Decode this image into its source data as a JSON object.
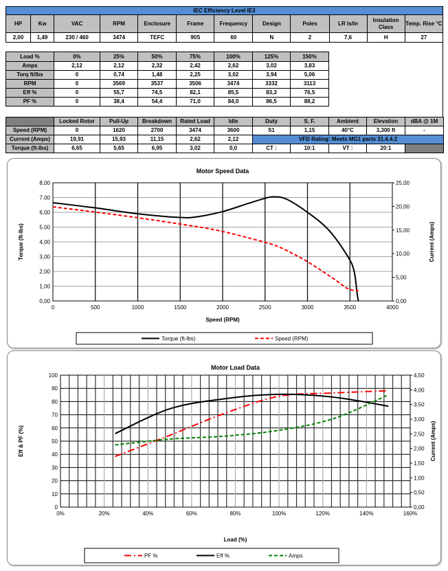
{
  "specs": {
    "title": "IEC Efficiency Level IE3",
    "headers": [
      "HP",
      "Kw",
      "VAC",
      "RPM",
      "Enclosure",
      "Frame",
      "Frequency",
      "Design",
      "Poles",
      "LR Is/In",
      "Insulation Class",
      "Temp. Rise °C"
    ],
    "values": [
      "2,00",
      "1,49",
      "230 / 460",
      "3474",
      "TEFC",
      "90S",
      "60",
      "N",
      "2",
      "7,6",
      "H",
      "27"
    ]
  },
  "load_table": {
    "headers": [
      "Load %",
      "0%",
      "25%",
      "50%",
      "75%",
      "100%",
      "125%",
      "150%"
    ],
    "rows": [
      [
        "Amps",
        "2,12",
        "2,12",
        "2,32",
        "2,42",
        "2,62",
        "3,02",
        "3,83"
      ],
      [
        "Torq ft/lbs",
        "0",
        "0,74",
        "1,48",
        "2,25",
        "3,02",
        "3,94",
        "5,06"
      ],
      [
        "RPM",
        "0",
        "3569",
        "3537",
        "3506",
        "3474",
        "3332",
        "3113"
      ],
      [
        "Eff %",
        "0",
        "55,7",
        "74,5",
        "82,1",
        "85,5",
        "83,3",
        "76,5"
      ],
      [
        "PF %",
        "0",
        "38,4",
        "54,4",
        "71,0",
        "84,0",
        "86,5",
        "88,2"
      ]
    ]
  },
  "perf_table": {
    "headers": [
      "",
      "Locked Rotor",
      "Pull-Up",
      "Breakdown",
      "Rated Load",
      "Idle",
      "Duty",
      "S. F.",
      "Ambient",
      "Elevation",
      "dBA @ 1M"
    ],
    "speed": [
      "Speed (RPM)",
      "0",
      "1620",
      "2700",
      "3474",
      "3600",
      "S1",
      "1,15",
      "40°C",
      "3,300 ft",
      "-"
    ],
    "current": [
      "Current (Amps)",
      "19,91",
      "15,93",
      "11,15",
      "2,62",
      "2,12"
    ],
    "vfd": "VFD Rating: Meets MG1 parts 31.4.4.2",
    "torque": [
      "Torque (ft-lbs)",
      "6,65",
      "5,65",
      "6,95",
      "3,02",
      "0,0",
      "CT :",
      "10:1",
      "VT :",
      "20:1"
    ]
  },
  "chart_data": [
    {
      "type": "line",
      "title": "Motor Speed Data",
      "xlabel": "Speed (RPM)",
      "ylabel": "Torque (ft-lbs)",
      "y2label": "Current (Amps)",
      "xlim": [
        0,
        4000
      ],
      "ylim": [
        0,
        8
      ],
      "y2lim": [
        0,
        25
      ],
      "xticks": [
        "0",
        "500",
        "1000",
        "1500",
        "2000",
        "2500",
        "3000",
        "3500",
        "4000"
      ],
      "yticks": [
        "0,00",
        "1,00",
        "2,00",
        "3,00",
        "4,00",
        "5,00",
        "6,00",
        "7,00",
        "8,00"
      ],
      "y2ticks": [
        "0,00",
        "5,00",
        "10,00",
        "15,00",
        "20,00",
        "25,00"
      ],
      "legend_position": "bottom",
      "series": [
        {
          "name": "Torque (ft-lbs)",
          "axis": "left",
          "color": "#000000",
          "dash": "solid",
          "x": [
            0,
            500,
            1000,
            1500,
            1700,
            2000,
            2300,
            2500,
            2600,
            2750,
            3000,
            3250,
            3474,
            3550,
            3585,
            3600
          ],
          "y": [
            6.65,
            6.3,
            5.9,
            5.65,
            5.7,
            6.05,
            6.6,
            6.95,
            7.05,
            6.9,
            6.0,
            4.8,
            3.02,
            2.0,
            0.5,
            0
          ]
        },
        {
          "name": "Speed (RPM)",
          "axis": "right",
          "color": "#ff0000",
          "dash": "dashed",
          "x": [
            0,
            500,
            1000,
            1620,
            2000,
            2500,
            2700,
            3000,
            3300,
            3474,
            3600
          ],
          "y": [
            19.91,
            18.8,
            17.6,
            15.93,
            14.7,
            12.4,
            11.15,
            8.3,
            4.8,
            2.62,
            2.12
          ]
        }
      ]
    },
    {
      "type": "line",
      "title": "Motor Load Data",
      "xlabel": "Load (%)",
      "ylabel": "Eff & PF (%)",
      "y2label": "Current (Amps)",
      "xlim": [
        0,
        160
      ],
      "ylim": [
        0,
        100
      ],
      "y2lim": [
        0,
        4.5
      ],
      "xticks": [
        "0%",
        "20%",
        "40%",
        "60%",
        "80%",
        "100%",
        "120%",
        "140%",
        "160%"
      ],
      "yticks": [
        "0",
        "10",
        "20",
        "30",
        "40",
        "50",
        "60",
        "70",
        "80",
        "90",
        "100"
      ],
      "y2ticks": [
        "0,00",
        "0,50",
        "1,00",
        "1,50",
        "2,00",
        "2,50",
        "3,00",
        "3,50",
        "4,00",
        "4,50"
      ],
      "legend_position": "bottom",
      "series": [
        {
          "name": "PF %",
          "axis": "left",
          "color": "#ff0000",
          "dash": "dashdot",
          "x": [
            25,
            50,
            75,
            100,
            125,
            150
          ],
          "y": [
            38.4,
            54.4,
            71.0,
            84.0,
            86.5,
            88.2
          ]
        },
        {
          "name": "Eff %",
          "axis": "left",
          "color": "#000000",
          "dash": "solid",
          "x": [
            25,
            50,
            75,
            100,
            125,
            150
          ],
          "y": [
            55.7,
            74.5,
            82.1,
            85.5,
            83.3,
            76.5
          ]
        },
        {
          "name": "Amps",
          "axis": "right",
          "color": "#008000",
          "dash": "dashed",
          "x": [
            25,
            50,
            75,
            100,
            125,
            150
          ],
          "y": [
            2.12,
            2.32,
            2.42,
            2.62,
            3.02,
            3.83
          ]
        }
      ]
    }
  ]
}
